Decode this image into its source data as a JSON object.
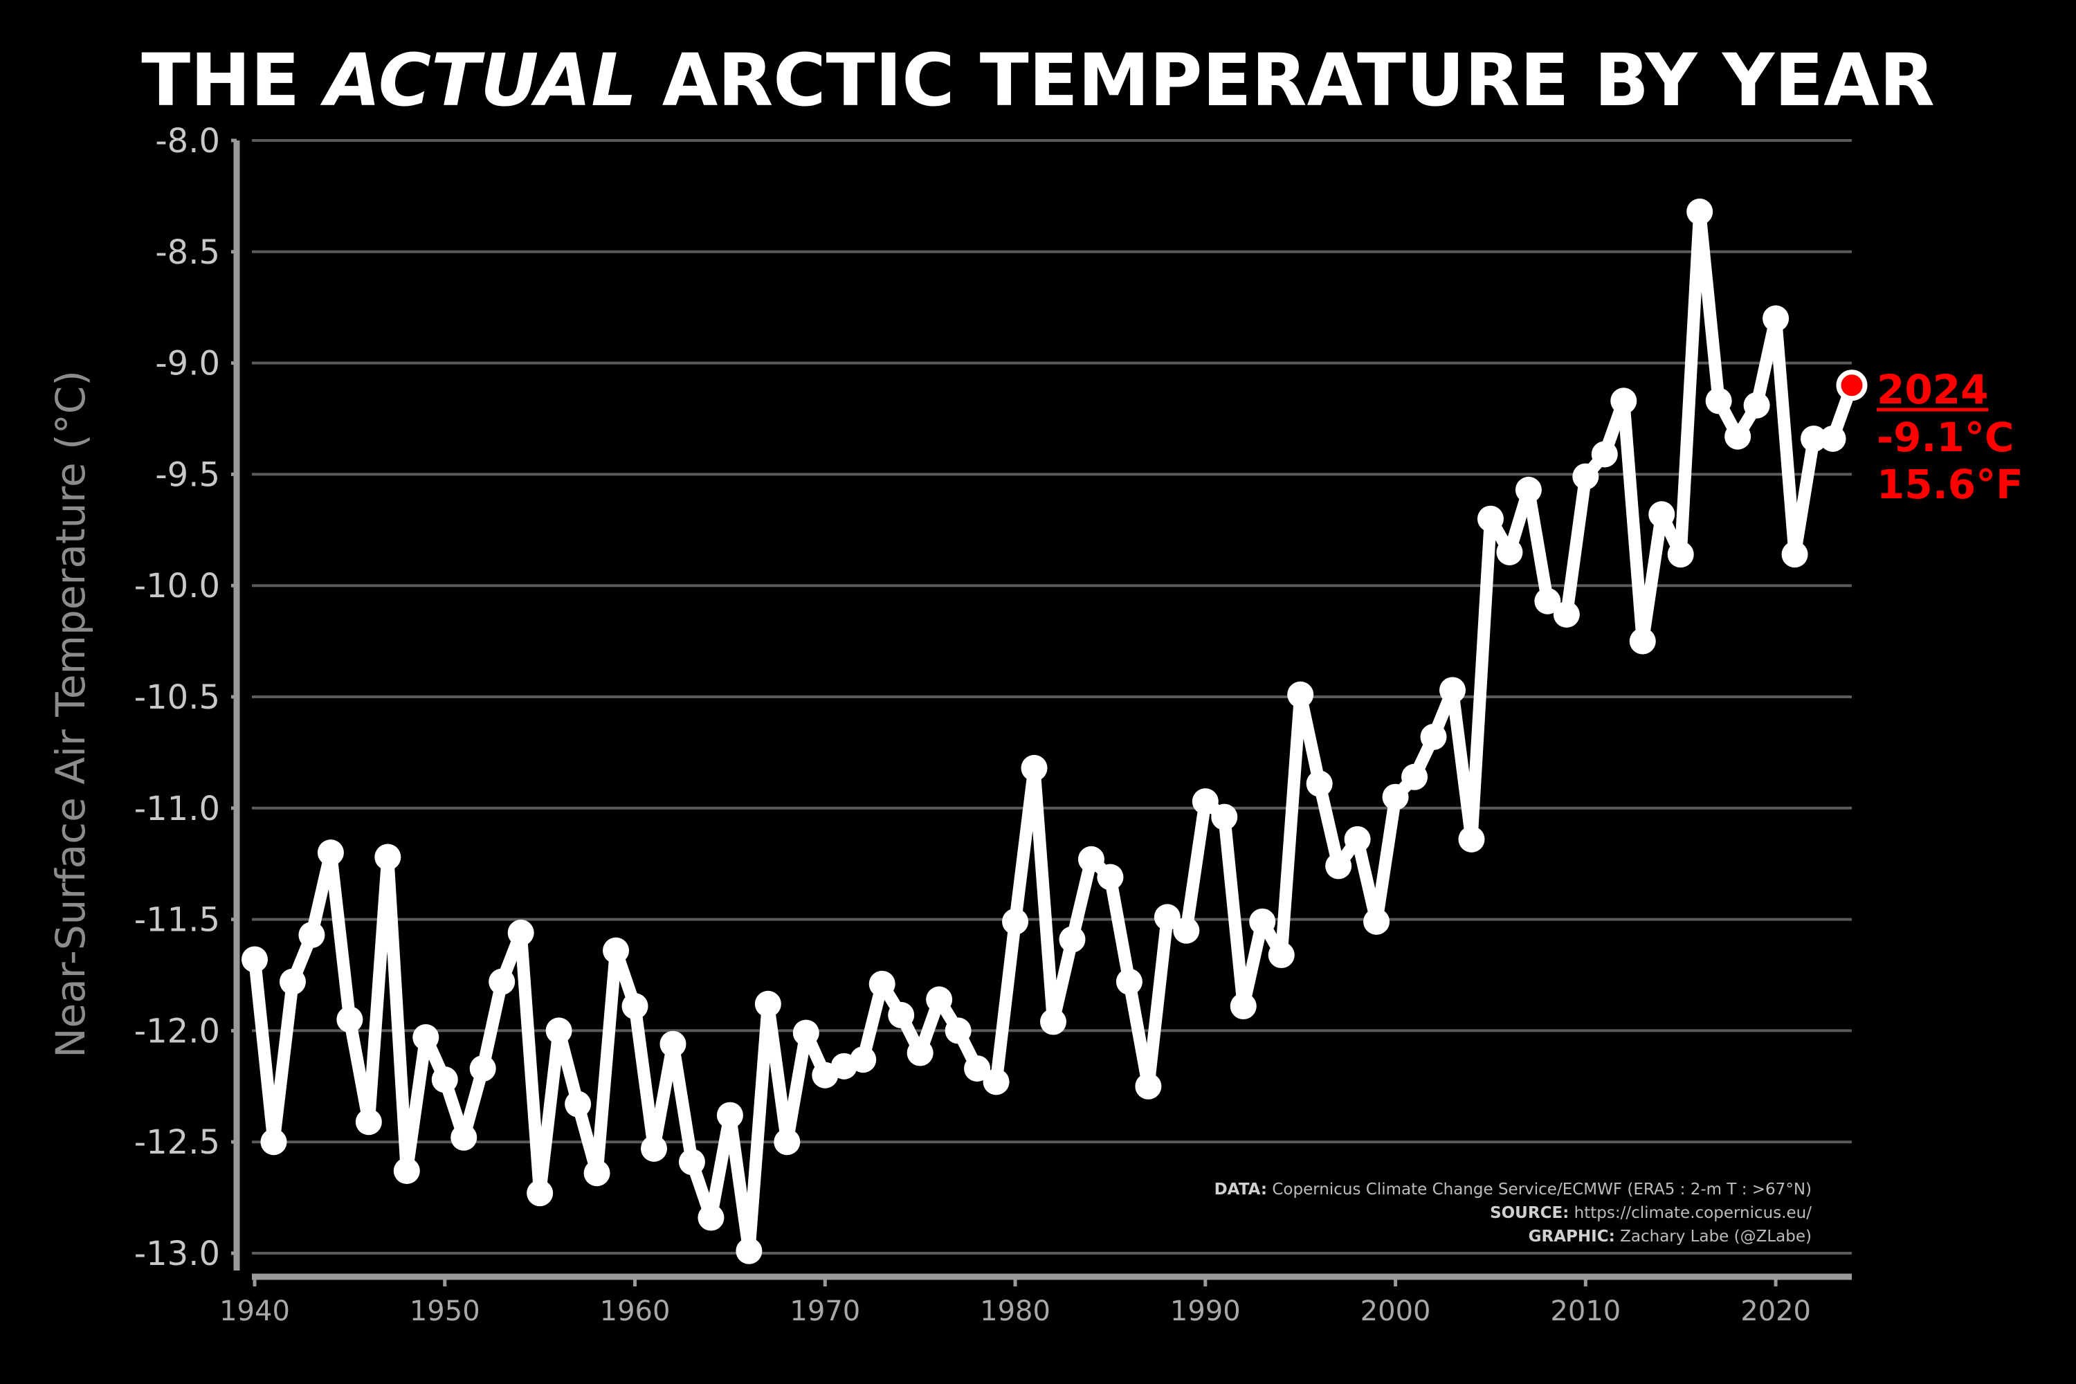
{
  "chart_data": {
    "type": "line",
    "title_parts": [
      "THE ",
      "ACTUAL",
      " ARCTIC TEMPERATURE BY YEAR"
    ],
    "ylabel": "Near-Surface Air Temperature (°C)",
    "xlabel": "",
    "xlim": [
      1940,
      2024
    ],
    "ylim": [
      -13.0,
      -8.0
    ],
    "grid": true,
    "line_color": "#ffffff",
    "highlight_color": "#ff0000",
    "x_ticks": [
      "1940",
      "1950",
      "1960",
      "1970",
      "1980",
      "1990",
      "2000",
      "2010",
      "2020"
    ],
    "y_ticks": [
      "-8.0",
      "-8.5",
      "-9.0",
      "-9.5",
      "-10.0",
      "-10.5",
      "-11.0",
      "-11.5",
      "-12.0",
      "-12.5",
      "-13.0"
    ],
    "x": [
      1940,
      1941,
      1942,
      1943,
      1944,
      1945,
      1946,
      1947,
      1948,
      1949,
      1950,
      1951,
      1952,
      1953,
      1954,
      1955,
      1956,
      1957,
      1958,
      1959,
      1960,
      1961,
      1962,
      1963,
      1964,
      1965,
      1966,
      1967,
      1968,
      1969,
      1970,
      1971,
      1972,
      1973,
      1974,
      1975,
      1976,
      1977,
      1978,
      1979,
      1980,
      1981,
      1982,
      1983,
      1984,
      1985,
      1986,
      1987,
      1988,
      1989,
      1990,
      1991,
      1992,
      1993,
      1994,
      1995,
      1996,
      1997,
      1998,
      1999,
      2000,
      2001,
      2002,
      2003,
      2004,
      2005,
      2006,
      2007,
      2008,
      2009,
      2010,
      2011,
      2012,
      2013,
      2014,
      2015,
      2016,
      2017,
      2018,
      2019,
      2020,
      2021,
      2022,
      2023,
      2024
    ],
    "y": [
      -11.68,
      -12.5,
      -11.78,
      -11.57,
      -11.2,
      -11.95,
      -12.41,
      -11.22,
      -12.63,
      -12.03,
      -12.22,
      -12.48,
      -12.17,
      -11.78,
      -11.56,
      -12.73,
      -12.0,
      -12.33,
      -12.64,
      -11.64,
      -11.89,
      -12.53,
      -12.06,
      -12.59,
      -12.84,
      -12.38,
      -12.99,
      -11.88,
      -12.5,
      -12.01,
      -12.2,
      -12.16,
      -12.13,
      -11.79,
      -11.93,
      -12.1,
      -11.86,
      -12.0,
      -12.17,
      -12.23,
      -11.51,
      -10.82,
      -11.96,
      -11.59,
      -11.23,
      -11.31,
      -11.78,
      -12.25,
      -11.49,
      -11.55,
      -10.97,
      -11.04,
      -11.89,
      -11.51,
      -11.66,
      -10.49,
      -10.89,
      -11.26,
      -11.14,
      -11.51,
      -10.95,
      -10.86,
      -10.68,
      -10.47,
      -11.14,
      -9.7,
      -9.85,
      -9.57,
      -10.07,
      -10.13,
      -9.51,
      -9.41,
      -9.17,
      -10.25,
      -9.68,
      -9.86,
      -8.32,
      -9.17,
      -9.33,
      -9.19,
      -8.8,
      -9.86,
      -9.34,
      -9.34,
      -9.1
    ],
    "highlight": {
      "year": "2024",
      "celsius": "-9.1°C",
      "fahrenheit": "15.6°F"
    },
    "credits": [
      {
        "label": "DATA:",
        "text": " Copernicus Climate Change Service/ECMWF (ERA5 : 2-m T : >67°N)"
      },
      {
        "label": "SOURCE:",
        "text": " https://climate.copernicus.eu/"
      },
      {
        "label": "GRAPHIC:",
        "text": " Zachary Labe (@ZLabe)"
      }
    ]
  }
}
